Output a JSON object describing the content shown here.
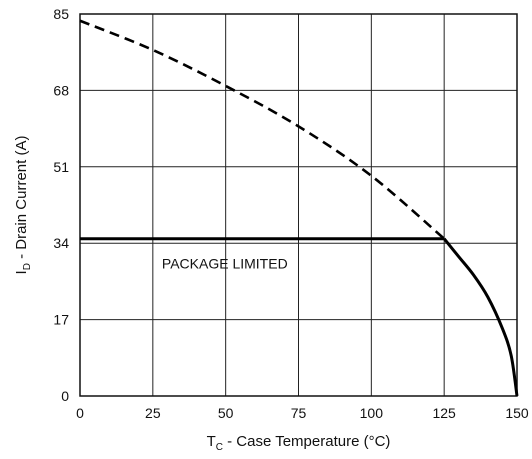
{
  "chart_data": {
    "type": "line",
    "title": "",
    "xlabel": {
      "main": "T",
      "sub": "C",
      "rest": " - Case Temperature (°C)"
    },
    "ylabel": {
      "main": "I",
      "sub": "D",
      "rest": " - Drain Current (A)"
    },
    "xlim": [
      0,
      150
    ],
    "ylim": [
      0,
      85
    ],
    "x_ticks": [
      0,
      25,
      50,
      75,
      100,
      125,
      150
    ],
    "y_ticks": [
      0,
      17,
      34,
      51,
      68,
      85
    ],
    "grid": true,
    "annotations": [
      {
        "text": "PACKAGE LIMITED",
        "x": 24,
        "y": 29.5
      }
    ],
    "series": [
      {
        "style": "dashed",
        "x": [
          0,
          25,
          50,
          75,
          100,
          125
        ],
        "y": [
          83.5,
          77,
          69,
          60,
          49,
          35
        ]
      },
      {
        "style": "solid-package-limit",
        "x": [
          0,
          125
        ],
        "y": [
          35,
          35
        ]
      },
      {
        "style": "solid",
        "x": [
          125,
          130,
          135,
          140,
          145,
          148,
          150
        ],
        "y": [
          35,
          31,
          27,
          22,
          15,
          9,
          0
        ]
      }
    ]
  }
}
